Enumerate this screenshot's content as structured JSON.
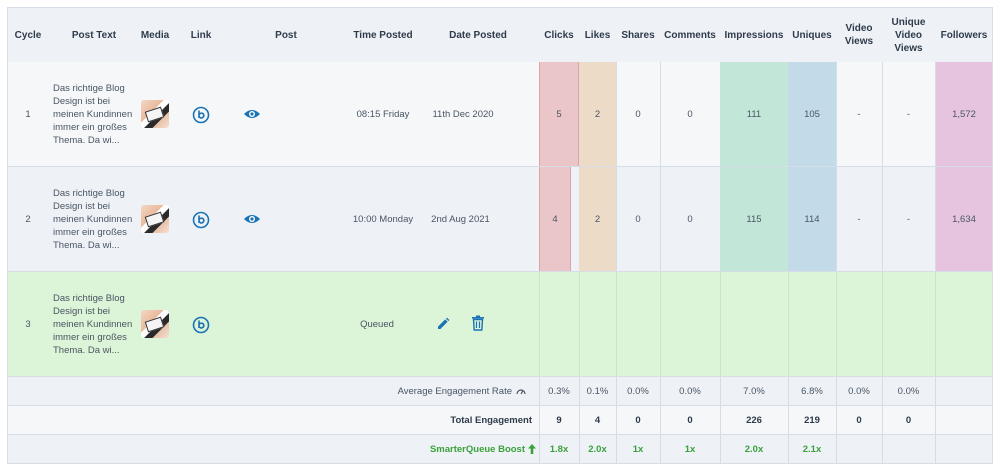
{
  "colors": {
    "clicks": "#ebc6c9",
    "likes": "#ecdcc7",
    "impressions": "#c2e7d8",
    "uniques": "#c3dbe9",
    "followers": "#e6c4e0",
    "queued": "#dcf4d7",
    "icon_blue": "#1a73b5",
    "boost_green": "#3aa13a"
  },
  "headers": {
    "cycle": "Cycle",
    "post_text": "Post Text",
    "media": "Media",
    "link": "Link",
    "post": "Post",
    "time_posted": "Time Posted",
    "date_posted": "Date Posted",
    "clicks": "Clicks",
    "likes": "Likes",
    "shares": "Shares",
    "comments": "Comments",
    "impressions": "Impressions",
    "uniques": "Uniques",
    "video_views": "Video Views",
    "unique_video_views": "Unique Video Views",
    "followers": "Followers"
  },
  "rows": [
    {
      "cycle": "1",
      "post_text": "Das richtige Blog Design ist bei meinen Kundinnen immer ein großes Thema. Da wi...",
      "media_icon": "photo-thumbnail",
      "link_icon": "bitly-icon",
      "post_icon": "eye-icon",
      "time": "08:15 Friday",
      "date": "11th Dec 2020",
      "clicks": "5",
      "likes": "2",
      "shares": "0",
      "comments": "0",
      "impressions": "111",
      "uniques": "105",
      "video_views": "-",
      "unique_video_views": "-",
      "followers": "1,572"
    },
    {
      "cycle": "2",
      "post_text": "Das richtige Blog Design ist bei meinen Kundinnen immer ein großes Thema. Da wi...",
      "media_icon": "photo-thumbnail",
      "link_icon": "bitly-icon",
      "post_icon": "eye-icon",
      "time": "10:00 Monday",
      "date": "2nd Aug 2021",
      "clicks": "4",
      "likes": "2",
      "shares": "0",
      "comments": "0",
      "impressions": "115",
      "uniques": "114",
      "video_views": "-",
      "unique_video_views": "-",
      "followers": "1,634"
    },
    {
      "cycle": "3",
      "post_text": "Das richtige Blog Design ist bei meinen Kundinnen immer ein großes Thema. Da wi...",
      "media_icon": "photo-thumbnail",
      "link_icon": "bitly-icon",
      "status": "Queued",
      "edit_icon": "pencil-icon",
      "delete_icon": "trash-icon"
    }
  ],
  "summary": {
    "avg_label": "Average Engagement Rate",
    "avg": {
      "clicks": "0.3%",
      "likes": "0.1%",
      "shares": "0.0%",
      "comments": "0.0%",
      "impressions": "7.0%",
      "uniques": "6.8%",
      "video_views": "0.0%",
      "unique_video_views": "0.0%"
    },
    "total_label": "Total Engagement",
    "total": {
      "clicks": "9",
      "likes": "4",
      "shares": "0",
      "comments": "0",
      "impressions": "226",
      "uniques": "219",
      "video_views": "0",
      "unique_video_views": "0"
    },
    "boost_label": "SmarterQueue Boost",
    "boost": {
      "clicks": "1.8x",
      "likes": "2.0x",
      "shares": "1x",
      "comments": "1x",
      "impressions": "2.0x",
      "uniques": "2.1x"
    }
  }
}
